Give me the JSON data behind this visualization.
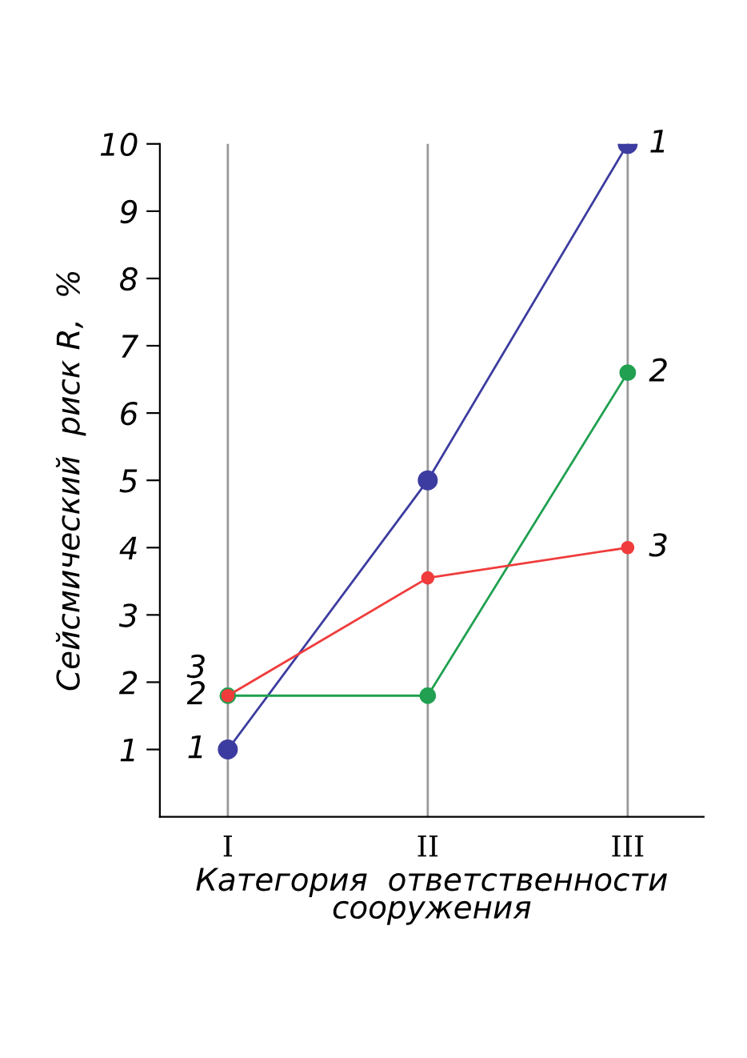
{
  "chart_data": {
    "type": "line",
    "xlabel": "Категория  ответственности\nсооружения",
    "ylabel": "Сейсмический  риск R,  %",
    "categories": [
      "I",
      "II",
      "III"
    ],
    "series": [
      {
        "name": "1",
        "color": "#3c3ca0",
        "values": [
          1,
          5,
          10
        ]
      },
      {
        "name": "2",
        "color": "#20a050",
        "values": [
          1.8,
          1.8,
          6.6
        ]
      },
      {
        "name": "3",
        "color": "#f03c3c",
        "values": [
          1.8,
          3.55,
          4
        ]
      }
    ],
    "ylim": [
      0,
      10
    ],
    "yticks": [
      1,
      2,
      3,
      4,
      5,
      6,
      7,
      8,
      9,
      10
    ],
    "grid": "x",
    "marker": "circle",
    "line_style": "solid",
    "legend": false
  }
}
